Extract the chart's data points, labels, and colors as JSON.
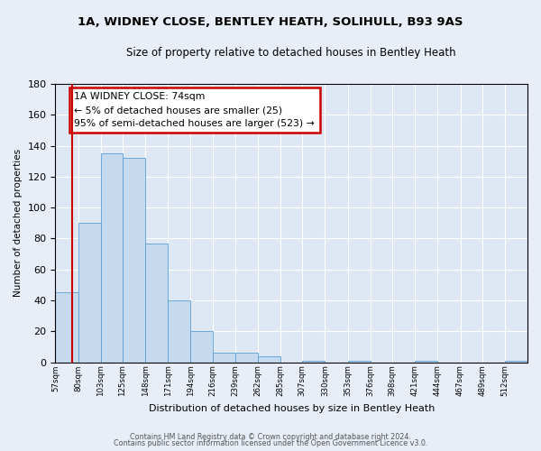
{
  "title": "1A, WIDNEY CLOSE, BENTLEY HEATH, SOLIHULL, B93 9AS",
  "subtitle": "Size of property relative to detached houses in Bentley Heath",
  "xlabel": "Distribution of detached houses by size in Bentley Heath",
  "ylabel": "Number of detached properties",
  "bar_color": "#c5d9ef",
  "bar_edge_color": "#5a9fd4",
  "background_color": "#dde8f4",
  "fig_background_color": "#e8eef8",
  "grid_color": "#ffffff",
  "annotation_box_color": "#ffffff",
  "annotation_box_edge": "#cc0000",
  "red_line_color": "#cc0000",
  "bin_labels": [
    "57sqm",
    "80sqm",
    "103sqm",
    "125sqm",
    "148sqm",
    "171sqm",
    "194sqm",
    "216sqm",
    "239sqm",
    "262sqm",
    "285sqm",
    "307sqm",
    "330sqm",
    "353sqm",
    "376sqm",
    "398sqm",
    "421sqm",
    "444sqm",
    "467sqm",
    "489sqm",
    "512sqm"
  ],
  "bin_edges": [
    57,
    80,
    103,
    125,
    148,
    171,
    194,
    216,
    239,
    262,
    285,
    307,
    330,
    353,
    376,
    398,
    421,
    444,
    467,
    489,
    512
  ],
  "bar_heights": [
    45,
    90,
    135,
    132,
    77,
    40,
    20,
    6,
    6,
    4,
    0,
    1,
    0,
    1,
    0,
    0,
    1,
    0,
    0,
    0,
    1
  ],
  "ylim": [
    0,
    180
  ],
  "yticks": [
    0,
    20,
    40,
    60,
    80,
    100,
    120,
    140,
    160,
    180
  ],
  "annotation_text": "1A WIDNEY CLOSE: 74sqm\n← 5% of detached houses are smaller (25)\n95% of semi-detached houses are larger (523) →",
  "red_line_x": 74,
  "footer_line1": "Contains HM Land Registry data © Crown copyright and database right 2024.",
  "footer_line2": "Contains public sector information licensed under the Open Government Licence v3.0."
}
